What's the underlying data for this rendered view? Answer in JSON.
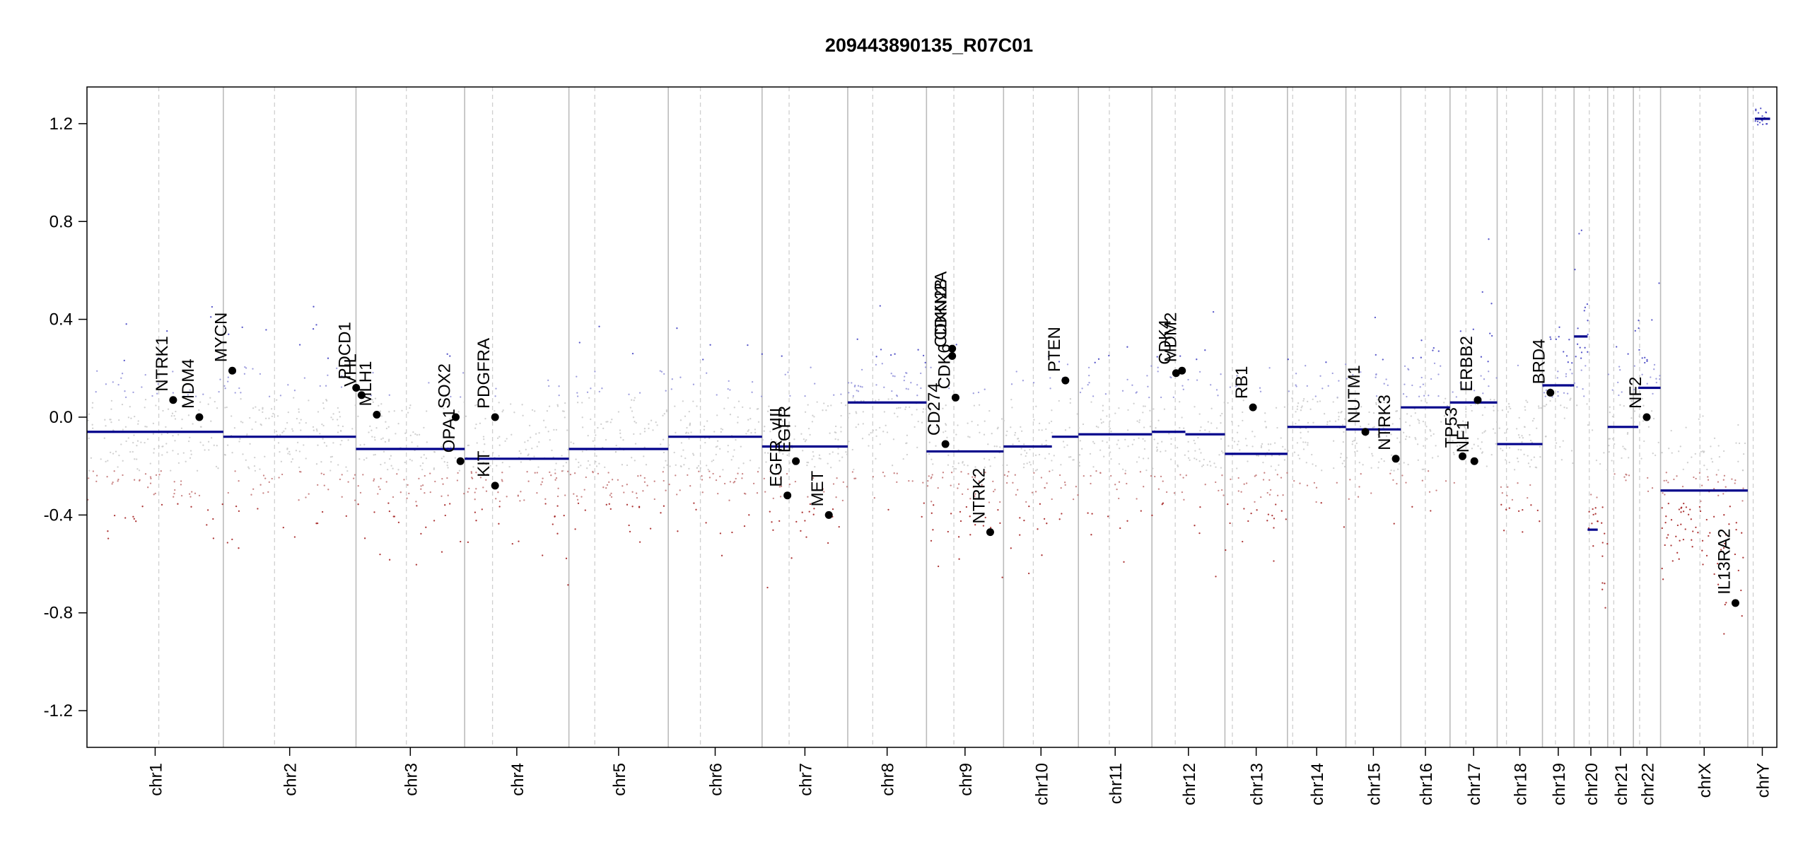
{
  "chart_data": {
    "type": "scatter",
    "title": "209443890135_R07C01",
    "xlabel": "",
    "ylabel": "",
    "ylim": [
      -1.35,
      1.35
    ],
    "y_ticks": [
      1.2,
      0.8,
      0.4,
      0.0,
      -0.4,
      -0.8,
      -1.2
    ],
    "y_tick_labels": [
      "1.2",
      "0.8",
      "0.4",
      "0.0",
      "-0.4",
      "-0.8",
      "-1.2"
    ],
    "grid": false,
    "colors": {
      "gain": "#3b3bbf",
      "neutral": "#c8c8c8",
      "loss": "#a01616",
      "segment": "#00008b",
      "gene": "#000000",
      "border": "#bbbbbb"
    },
    "chromosomes": [
      {
        "name": "chr1",
        "start": 0.0,
        "end": 0.0807,
        "centromere": 0.0425
      },
      {
        "name": "chr2",
        "start": 0.0807,
        "end": 0.1592,
        "centromere": 0.111
      },
      {
        "name": "chr3",
        "start": 0.1592,
        "end": 0.2235,
        "centromere": 0.189
      },
      {
        "name": "chr4",
        "start": 0.2235,
        "end": 0.2852,
        "centromere": 0.24
      },
      {
        "name": "chr5",
        "start": 0.2852,
        "end": 0.344,
        "centromere": 0.3005
      },
      {
        "name": "chr6",
        "start": 0.344,
        "end": 0.3995,
        "centromere": 0.363
      },
      {
        "name": "chr7",
        "start": 0.3995,
        "end": 0.4502,
        "centromere": 0.4155
      },
      {
        "name": "chr8",
        "start": 0.4502,
        "end": 0.4968,
        "centromere": 0.465
      },
      {
        "name": "chr9",
        "start": 0.4968,
        "end": 0.5424,
        "centromere": 0.513
      },
      {
        "name": "chr10",
        "start": 0.5424,
        "end": 0.5867,
        "centromere": 0.56
      },
      {
        "name": "chr11",
        "start": 0.5867,
        "end": 0.6302,
        "centromere": 0.605
      },
      {
        "name": "chr12",
        "start": 0.6302,
        "end": 0.6734,
        "centromere": 0.644
      },
      {
        "name": "chr13",
        "start": 0.6734,
        "end": 0.7104,
        "centromere": 0.6778
      },
      {
        "name": "chr14",
        "start": 0.7104,
        "end": 0.745,
        "centromere": 0.7135
      },
      {
        "name": "chr15",
        "start": 0.745,
        "end": 0.7775,
        "centromere": 0.7505
      },
      {
        "name": "chr16",
        "start": 0.7775,
        "end": 0.8066,
        "centromere": 0.792
      },
      {
        "name": "chr17",
        "start": 0.8066,
        "end": 0.8345,
        "centromere": 0.816
      },
      {
        "name": "chr18",
        "start": 0.8345,
        "end": 0.8613,
        "centromere": 0.84
      },
      {
        "name": "chr19",
        "start": 0.8613,
        "end": 0.88,
        "centromere": 0.869
      },
      {
        "name": "chr20",
        "start": 0.88,
        "end": 0.8999,
        "centromere": 0.889
      },
      {
        "name": "chr21",
        "start": 0.8999,
        "end": 0.9151,
        "centromere": 0.9035
      },
      {
        "name": "chr22",
        "start": 0.9151,
        "end": 0.9312,
        "centromere": 0.9188
      },
      {
        "name": "chrX",
        "start": 0.9312,
        "end": 0.9828,
        "centromere": 0.9545
      },
      {
        "name": "chrY",
        "start": 0.9828,
        "end": 1.0,
        "centromere": 0.986
      }
    ],
    "segments": [
      {
        "chr": "chr1",
        "x0": 0.0,
        "x1": 0.0807,
        "y": -0.06
      },
      {
        "chr": "chr2",
        "x0": 0.0807,
        "x1": 0.1592,
        "y": -0.08
      },
      {
        "chr": "chr3",
        "x0": 0.1592,
        "x1": 0.2235,
        "y": -0.13
      },
      {
        "chr": "chr4",
        "x0": 0.2235,
        "x1": 0.2852,
        "y": -0.17
      },
      {
        "chr": "chr5",
        "x0": 0.2852,
        "x1": 0.344,
        "y": -0.13
      },
      {
        "chr": "chr6",
        "x0": 0.344,
        "x1": 0.3995,
        "y": -0.08
      },
      {
        "chr": "chr7",
        "x0": 0.3995,
        "x1": 0.4502,
        "y": -0.12
      },
      {
        "chr": "chr8",
        "x0": 0.4502,
        "x1": 0.4968,
        "y": 0.06
      },
      {
        "chr": "chr9",
        "x0": 0.4968,
        "x1": 0.5424,
        "y": -0.14
      },
      {
        "chr": "chr10",
        "x0": 0.5424,
        "x1": 0.571,
        "y": -0.12
      },
      {
        "chr": "chr10",
        "x0": 0.571,
        "x1": 0.5867,
        "y": -0.08
      },
      {
        "chr": "chr11",
        "x0": 0.5867,
        "x1": 0.6302,
        "y": -0.07
      },
      {
        "chr": "chr12",
        "x0": 0.6302,
        "x1": 0.65,
        "y": -0.06
      },
      {
        "chr": "chr12",
        "x0": 0.65,
        "x1": 0.6734,
        "y": -0.07
      },
      {
        "chr": "chr13",
        "x0": 0.6734,
        "x1": 0.7104,
        "y": -0.15
      },
      {
        "chr": "chr14",
        "x0": 0.7104,
        "x1": 0.745,
        "y": -0.04
      },
      {
        "chr": "chr15",
        "x0": 0.745,
        "x1": 0.7775,
        "y": -0.05
      },
      {
        "chr": "chr16",
        "x0": 0.7775,
        "x1": 0.8066,
        "y": 0.04
      },
      {
        "chr": "chr17",
        "x0": 0.8066,
        "x1": 0.8345,
        "y": 0.06
      },
      {
        "chr": "chr18",
        "x0": 0.8345,
        "x1": 0.8613,
        "y": -0.11
      },
      {
        "chr": "chr19",
        "x0": 0.8613,
        "x1": 0.88,
        "y": 0.13
      },
      {
        "chr": "chr20",
        "x0": 0.88,
        "x1": 0.888,
        "y": 0.33
      },
      {
        "chr": "chr20",
        "x0": 0.888,
        "x1": 0.894,
        "y": -0.46
      },
      {
        "chr": "chr21",
        "x0": 0.8999,
        "x1": 0.9151,
        "y": -0.04
      },
      {
        "chr": "chr22",
        "x0": 0.9151,
        "x1": 0.918,
        "y": -0.04
      },
      {
        "chr": "chr22",
        "x0": 0.918,
        "x1": 0.9312,
        "y": 0.12
      },
      {
        "chr": "chrX",
        "x0": 0.9312,
        "x1": 0.9828,
        "y": -0.3
      },
      {
        "chr": "chrY",
        "x0": 0.987,
        "x1": 0.996,
        "y": 1.22
      }
    ],
    "genes": [
      {
        "name": "NTRK1",
        "x": 0.051,
        "y": 0.07
      },
      {
        "name": "MDM4",
        "x": 0.0665,
        "y": 0.0
      },
      {
        "name": "MYCN",
        "x": 0.086,
        "y": 0.19
      },
      {
        "name": "PDCD1",
        "x": 0.1593,
        "y": 0.12
      },
      {
        "name": "VHL",
        "x": 0.1625,
        "y": 0.09
      },
      {
        "name": "MLH1",
        "x": 0.1715,
        "y": 0.01
      },
      {
        "name": "SOX2",
        "x": 0.2182,
        "y": 0.0
      },
      {
        "name": "OPA1",
        "x": 0.221,
        "y": -0.18
      },
      {
        "name": "PDGFRA",
        "x": 0.2415,
        "y": 0.0
      },
      {
        "name": "KIT",
        "x": 0.2415,
        "y": -0.28
      },
      {
        "name": "EGFR",
        "x": 0.4195,
        "y": -0.18
      },
      {
        "name": "EGFR_vIII",
        "x": 0.4145,
        "y": -0.32
      },
      {
        "name": "MET",
        "x": 0.439,
        "y": -0.4
      },
      {
        "name": "CDKN2A",
        "x": 0.512,
        "y": 0.28
      },
      {
        "name": "CDKN2B",
        "x": 0.512,
        "y": 0.25
      },
      {
        "name": "CD274",
        "x": 0.508,
        "y": -0.11
      },
      {
        "name": "CDK6",
        "x": 0.514,
        "y": 0.08
      },
      {
        "name": "NTRK2",
        "x": 0.5345,
        "y": -0.47
      },
      {
        "name": "PTEN",
        "x": 0.579,
        "y": 0.15
      },
      {
        "name": "CDK4",
        "x": 0.6445,
        "y": 0.18
      },
      {
        "name": "MDM2",
        "x": 0.648,
        "y": 0.19
      },
      {
        "name": "RB1",
        "x": 0.69,
        "y": 0.04
      },
      {
        "name": "NUTM1",
        "x": 0.7565,
        "y": -0.06
      },
      {
        "name": "NTRK3",
        "x": 0.7745,
        "y": -0.17
      },
      {
        "name": "TP53",
        "x": 0.814,
        "y": -0.16
      },
      {
        "name": "NF1",
        "x": 0.821,
        "y": -0.18
      },
      {
        "name": "ERBB2",
        "x": 0.823,
        "y": 0.07
      },
      {
        "name": "BRD4",
        "x": 0.866,
        "y": 0.1
      },
      {
        "name": "NF2",
        "x": 0.923,
        "y": 0.0
      },
      {
        "name": "IL13RA2",
        "x": 0.9755,
        "y": -0.76
      }
    ],
    "point_profiles": [
      {
        "chr": "chr1",
        "mean": -0.08,
        "spread": 0.16
      },
      {
        "chr": "chr2",
        "mean": -0.1,
        "spread": 0.17
      },
      {
        "chr": "chr3",
        "mean": -0.16,
        "spread": 0.17
      },
      {
        "chr": "chr4",
        "mean": -0.19,
        "spread": 0.17
      },
      {
        "chr": "chr5",
        "mean": -0.16,
        "spread": 0.17
      },
      {
        "chr": "chr6",
        "mean": -0.11,
        "spread": 0.17
      },
      {
        "chr": "chr7",
        "mean": -0.15,
        "spread": 0.18
      },
      {
        "chr": "chr8",
        "mean": 0.02,
        "spread": 0.17
      },
      {
        "chr": "chr9",
        "mean": -0.18,
        "spread": 0.18
      },
      {
        "chr": "chr10",
        "mean": -0.14,
        "spread": 0.17
      },
      {
        "chr": "chr11",
        "mean": -0.1,
        "spread": 0.17
      },
      {
        "chr": "chr12",
        "mean": -0.09,
        "spread": 0.17
      },
      {
        "chr": "chr13",
        "mean": -0.17,
        "spread": 0.17
      },
      {
        "chr": "chr14",
        "mean": -0.07,
        "spread": 0.16
      },
      {
        "chr": "chr15",
        "mean": -0.07,
        "spread": 0.16
      },
      {
        "chr": "chr16",
        "mean": 0.01,
        "spread": 0.17
      },
      {
        "chr": "chr17",
        "mean": 0.02,
        "spread": 0.17
      },
      {
        "chr": "chr18",
        "mean": -0.13,
        "spread": 0.17
      },
      {
        "chr": "chr19",
        "mean": 0.09,
        "spread": 0.15
      },
      {
        "chr": "chr20",
        "mean": -0.05,
        "spread": 0.35
      },
      {
        "chr": "chr21",
        "mean": -0.07,
        "spread": 0.16
      },
      {
        "chr": "chr22",
        "mean": 0.1,
        "spread": 0.22
      },
      {
        "chr": "chrX",
        "mean": -0.35,
        "spread": 0.18
      },
      {
        "chr": "chrY",
        "mean": 1.22,
        "spread": 0.02
      }
    ]
  }
}
